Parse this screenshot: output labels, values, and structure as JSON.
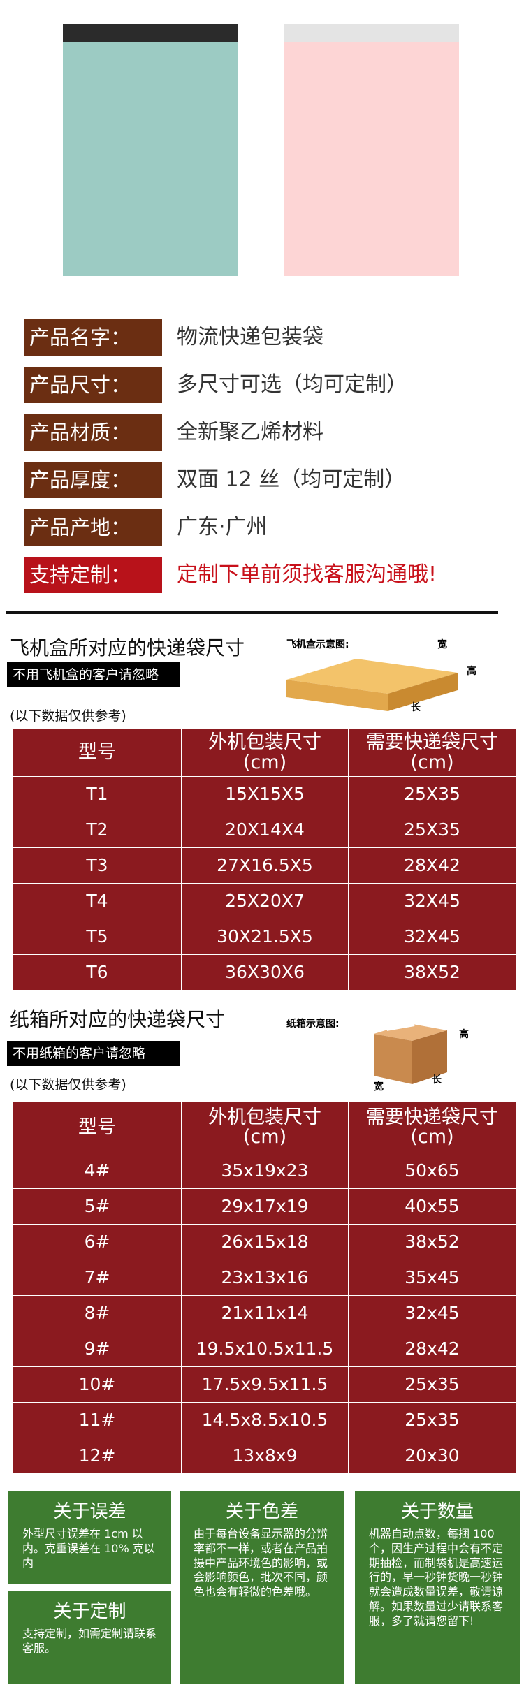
{
  "product_info": [
    {
      "label": "产品名字：",
      "value": "物流快递包装袋"
    },
    {
      "label": "产品尺寸：",
      "value": "多尺寸可选（均可定制）"
    },
    {
      "label": "产品材质：",
      "value": "全新聚乙烯材料"
    },
    {
      "label": "产品厚度：",
      "value": "双面 12 丝（均可定制）"
    },
    {
      "label": "产品产地：",
      "value": "广东·广州"
    },
    {
      "label": "支持定制：",
      "value": "定制下单前须找客服沟通哦!"
    }
  ],
  "sections": [
    {
      "title": "飞机盒所对应的快递袋尺寸",
      "note": "不用飞机盒的客户请忽略",
      "diagram": {
        "title": "飞机盒示意图:",
        "width": "宽",
        "height": "高",
        "length": "长"
      },
      "reference": "(以下数据仅供参考)",
      "table": {
        "header": [
          [
            "型号"
          ],
          [
            "外机包装尺寸",
            "(cm)"
          ],
          [
            "需要快递袋尺寸",
            "(cm)"
          ]
        ],
        "rows": [
          [
            "T1",
            "15X15X5",
            "25X35"
          ],
          [
            "T2",
            "20X14X4",
            "25X35"
          ],
          [
            "T3",
            "27X16.5X5",
            "28X42"
          ],
          [
            "T4",
            "25X20X7",
            "32X45"
          ],
          [
            "T5",
            "30X21.5X5",
            "32X45"
          ],
          [
            "T6",
            "36X30X6",
            "38X52"
          ]
        ]
      }
    },
    {
      "title": "纸箱所对应的快递袋尺寸",
      "note": "不用纸箱的客户请忽略",
      "diagram": {
        "title": "纸箱示意图:",
        "width": "宽",
        "height": "高",
        "length": "长"
      },
      "reference": "(以下数据仅供参考)",
      "table": {
        "header": [
          [
            "型号"
          ],
          [
            "外机包装尺寸",
            "(cm)"
          ],
          [
            "需要快递袋尺寸",
            "(cm)"
          ]
        ],
        "rows": [
          [
            "4#",
            "35x19x23",
            "50x65"
          ],
          [
            "5#",
            "29x17x19",
            "40x55"
          ],
          [
            "6#",
            "26x15x18",
            "38x52"
          ],
          [
            "7#",
            "23x13x16",
            "35x45"
          ],
          [
            "8#",
            "21x11x14",
            "32x45"
          ],
          [
            "9#",
            "19.5x10.5x11.5",
            "28x42"
          ],
          [
            "10#",
            "17.5x9.5x11.5",
            "25x35"
          ],
          [
            "11#",
            "14.5x8.5x10.5",
            "25x35"
          ],
          [
            "12#",
            "13x8x9",
            "20x30"
          ]
        ]
      }
    }
  ],
  "notes": [
    {
      "title": "关于误差",
      "text": "外型尺寸误差在 1cm 以内。克重误差在 10% 克以内"
    },
    {
      "title": "关于色差",
      "text": "由于每台设备显示器的分辨率都不一样，或者在产品拍摄中产品环境色的影响，或会影响颜色，批次不同，颜色也会有轻微的色差哦。"
    },
    {
      "title": "关于数量",
      "text": "机器自动点数，每捆 100 个，因生产过程中会有不定期抽检，而制袋机是高速运行的，早一秒钟货晚一秒钟就会造成数量误差，敬请谅解。如果数量过少请联系客服，多了就请您留下!"
    },
    {
      "title": "关于定制",
      "text": "支持定制，如需定制请联系客服。"
    }
  ]
}
